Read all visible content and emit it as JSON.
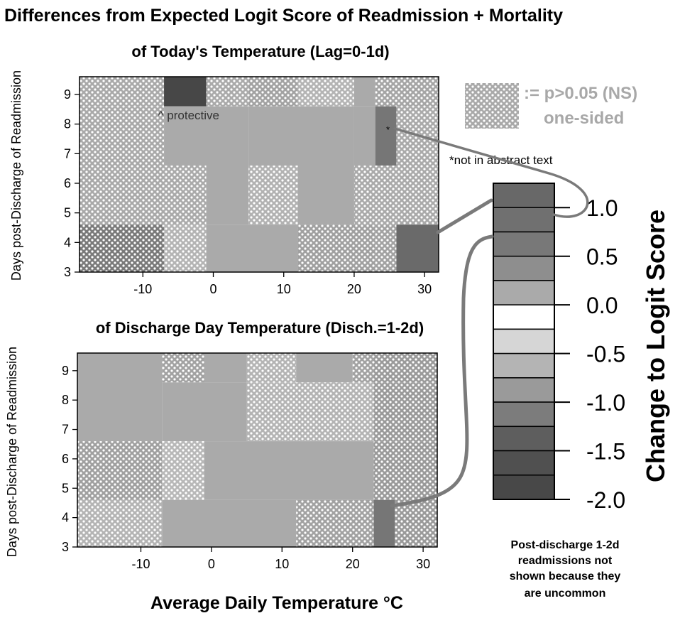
{
  "title": "Differences from Expected Logit Score of Readmission + Mortality",
  "legend_ns": {
    "line1": ":= p>0.05 (NS)",
    "line2": "one-sided"
  },
  "footnote": "*not in abstract text",
  "bottom_note": [
    "Post-discharge 1-2d",
    "readmissions not",
    "shown because they",
    "are uncommon"
  ],
  "colors": {
    "ns_dot": "#ffffff",
    "frame": "#000000",
    "connector": "#7a7a7a",
    "ns_legend_text": "#a8a8a8"
  },
  "colorbar": {
    "label": "Change to Logit Score",
    "ticks": [
      1.0,
      0.5,
      0.0,
      -0.5,
      -1.0,
      -1.5,
      -2.0
    ],
    "tick_labels": [
      "1.0",
      "0.5",
      "0.0",
      "-0.5",
      "-1.0",
      "-1.5",
      "-2.0"
    ],
    "range": [
      -2.0,
      1.25
    ],
    "steps": [
      {
        "from": 1.0,
        "to": 1.25,
        "color": "#686868"
      },
      {
        "from": 0.75,
        "to": 1.0,
        "color": "#707070"
      },
      {
        "from": 0.5,
        "to": 0.75,
        "color": "#787878"
      },
      {
        "from": 0.25,
        "to": 0.5,
        "color": "#8e8e8e"
      },
      {
        "from": 0.0,
        "to": 0.25,
        "color": "#aaaaaa"
      },
      {
        "from": -0.25,
        "to": 0.0,
        "color": "#ffffff"
      },
      {
        "from": -0.5,
        "to": -0.25,
        "color": "#d6d6d6"
      },
      {
        "from": -0.75,
        "to": -0.5,
        "color": "#b4b4b4"
      },
      {
        "from": -1.0,
        "to": -0.75,
        "color": "#9a9a9a"
      },
      {
        "from": -1.25,
        "to": -1.0,
        "color": "#7c7c7c"
      },
      {
        "from": -1.5,
        "to": -1.25,
        "color": "#5e5e5e"
      },
      {
        "from": -1.75,
        "to": -1.5,
        "color": "#505050"
      },
      {
        "from": -2.0,
        "to": -1.75,
        "color": "#484848"
      }
    ]
  },
  "chart_data": [
    {
      "type": "heatmap",
      "title": "of Today's Temperature (Lag=0-1d)",
      "xlabel": "",
      "ylabel": "Days post-Discharge of Readmission",
      "xlim": [
        -19,
        32
      ],
      "ylim": [
        3,
        9.6
      ],
      "xticks": [
        -10,
        0,
        10,
        20,
        30
      ],
      "yticks": [
        3,
        4,
        5,
        6,
        7,
        8,
        9
      ],
      "annotations": [
        {
          "text": "^ protective",
          "x": -3.5,
          "y": 8.3
        },
        {
          "text": "*",
          "x": 24.8,
          "y": 7.8
        }
      ],
      "cells": [
        {
          "x0": -19,
          "x1": -7,
          "y0": 8.6,
          "y1": 9.6,
          "color": "#a9a9a9",
          "ns": true
        },
        {
          "x0": -7,
          "x1": -1,
          "y0": 8.6,
          "y1": 9.6,
          "color": "#474747",
          "ns": false
        },
        {
          "x0": -1,
          "x1": 5,
          "y0": 8.6,
          "y1": 9.6,
          "color": "#aaaaaa",
          "ns": true
        },
        {
          "x0": 5,
          "x1": 12,
          "y0": 8.6,
          "y1": 9.6,
          "color": "#a2a2a2",
          "ns": true
        },
        {
          "x0": 12,
          "x1": 20,
          "y0": 8.6,
          "y1": 9.6,
          "color": "#b4b4b4",
          "ns": true
        },
        {
          "x0": 20,
          "x1": 23,
          "y0": 8.6,
          "y1": 9.6,
          "color": "#aaaaaa",
          "ns": false
        },
        {
          "x0": 23,
          "x1": 32,
          "y0": 8.6,
          "y1": 9.6,
          "color": "#a5a5a5",
          "ns": true
        },
        {
          "x0": -19,
          "x1": -7,
          "y0": 6.6,
          "y1": 8.6,
          "color": "#a9a9a9",
          "ns": true
        },
        {
          "x0": -7,
          "x1": 5,
          "y0": 6.6,
          "y1": 8.6,
          "color": "#aaaaaa",
          "ns": false
        },
        {
          "x0": 5,
          "x1": 20,
          "y0": 6.6,
          "y1": 8.6,
          "color": "#aaaaaa",
          "ns": false
        },
        {
          "x0": 20,
          "x1": 23,
          "y0": 6.6,
          "y1": 8.6,
          "color": "#aaaaaa",
          "ns": false
        },
        {
          "x0": 23,
          "x1": 26,
          "y0": 6.6,
          "y1": 8.6,
          "color": "#767676",
          "ns": false
        },
        {
          "x0": 26,
          "x1": 32,
          "y0": 6.6,
          "y1": 8.6,
          "color": "#aaaaaa",
          "ns": true
        },
        {
          "x0": -19,
          "x1": -7,
          "y0": 4.6,
          "y1": 6.6,
          "color": "#a9a9a9",
          "ns": true
        },
        {
          "x0": -7,
          "x1": -1,
          "y0": 4.6,
          "y1": 6.6,
          "color": "#aaaaaa",
          "ns": true
        },
        {
          "x0": -1,
          "x1": 5,
          "y0": 4.6,
          "y1": 6.6,
          "color": "#aaaaaa",
          "ns": false
        },
        {
          "x0": 5,
          "x1": 12,
          "y0": 4.6,
          "y1": 6.6,
          "color": "#b2b2b2",
          "ns": true
        },
        {
          "x0": 12,
          "x1": 20,
          "y0": 4.6,
          "y1": 6.6,
          "color": "#aaaaaa",
          "ns": false
        },
        {
          "x0": 20,
          "x1": 26,
          "y0": 4.6,
          "y1": 6.6,
          "color": "#aaaaaa",
          "ns": true
        },
        {
          "x0": 26,
          "x1": 32,
          "y0": 4.6,
          "y1": 6.6,
          "color": "#aaaaaa",
          "ns": true
        },
        {
          "x0": -19,
          "x1": -7,
          "y0": 3,
          "y1": 4.6,
          "color": "#7a7a7a",
          "ns": true
        },
        {
          "x0": -7,
          "x1": -1,
          "y0": 3,
          "y1": 4.6,
          "color": "#b4b4b4",
          "ns": true
        },
        {
          "x0": -1,
          "x1": 12,
          "y0": 3,
          "y1": 4.6,
          "color": "#aaaaaa",
          "ns": false
        },
        {
          "x0": 12,
          "x1": 23,
          "y0": 3,
          "y1": 4.6,
          "color": "#a0a0a0",
          "ns": true
        },
        {
          "x0": 23,
          "x1": 26,
          "y0": 3,
          "y1": 4.6,
          "color": "#a2a2a2",
          "ns": true
        },
        {
          "x0": 26,
          "x1": 32,
          "y0": 3,
          "y1": 4.6,
          "color": "#6a6a6a",
          "ns": false
        }
      ]
    },
    {
      "type": "heatmap",
      "title": "of Discharge Day Temperature (Disch.=1-2d)",
      "xlabel": "Average Daily Temperature °C",
      "ylabel": "Days post-Discharge of Readmission",
      "xlim": [
        -19,
        32
      ],
      "ylim": [
        3,
        9.6
      ],
      "xticks": [
        -10,
        0,
        10,
        20,
        30
      ],
      "yticks": [
        3,
        4,
        5,
        6,
        7,
        8,
        9
      ],
      "annotations": [],
      "cells": [
        {
          "x0": -19,
          "x1": -7,
          "y0": 6.6,
          "y1": 9.6,
          "color": "#aaaaaa",
          "ns": false
        },
        {
          "x0": -7,
          "x1": -1,
          "y0": 8.6,
          "y1": 9.6,
          "color": "#a2a2a2",
          "ns": true
        },
        {
          "x0": -1,
          "x1": 5,
          "y0": 8.6,
          "y1": 9.6,
          "color": "#aaaaaa",
          "ns": false
        },
        {
          "x0": 5,
          "x1": 12,
          "y0": 8.6,
          "y1": 9.6,
          "color": "#b4b4b4",
          "ns": true
        },
        {
          "x0": 12,
          "x1": 20,
          "y0": 8.6,
          "y1": 9.6,
          "color": "#aaaaaa",
          "ns": false
        },
        {
          "x0": 20,
          "x1": 23,
          "y0": 8.6,
          "y1": 9.6,
          "color": "#a2a2a2",
          "ns": true
        },
        {
          "x0": 23,
          "x1": 32,
          "y0": 8.6,
          "y1": 9.6,
          "color": "#9a9a9a",
          "ns": true
        },
        {
          "x0": -7,
          "x1": 5,
          "y0": 6.6,
          "y1": 8.6,
          "color": "#aaaaaa",
          "ns": false
        },
        {
          "x0": 5,
          "x1": 23,
          "y0": 6.6,
          "y1": 8.6,
          "color": "#b4b4b4",
          "ns": true
        },
        {
          "x0": 23,
          "x1": 32,
          "y0": 6.6,
          "y1": 8.6,
          "color": "#9a9a9a",
          "ns": true
        },
        {
          "x0": -19,
          "x1": -7,
          "y0": 4.6,
          "y1": 6.6,
          "color": "#a0a0a0",
          "ns": true
        },
        {
          "x0": -7,
          "x1": -1,
          "y0": 4.6,
          "y1": 6.6,
          "color": "#b8b8b8",
          "ns": true
        },
        {
          "x0": -1,
          "x1": 23,
          "y0": 4.6,
          "y1": 6.6,
          "color": "#aaaaaa",
          "ns": false
        },
        {
          "x0": 23,
          "x1": 32,
          "y0": 4.6,
          "y1": 6.6,
          "color": "#9a9a9a",
          "ns": true
        },
        {
          "x0": -19,
          "x1": -7,
          "y0": 3,
          "y1": 4.6,
          "color": "#b4b4b4",
          "ns": true
        },
        {
          "x0": -7,
          "x1": 12,
          "y0": 3,
          "y1": 4.6,
          "color": "#aaaaaa",
          "ns": false
        },
        {
          "x0": 12,
          "x1": 23,
          "y0": 3,
          "y1": 4.6,
          "color": "#a2a2a2",
          "ns": true
        },
        {
          "x0": 23,
          "x1": 26,
          "y0": 3,
          "y1": 4.6,
          "color": "#767676",
          "ns": false
        },
        {
          "x0": 26,
          "x1": 32,
          "y0": 3,
          "y1": 4.6,
          "color": "#9a9a9a",
          "ns": true
        }
      ]
    }
  ]
}
